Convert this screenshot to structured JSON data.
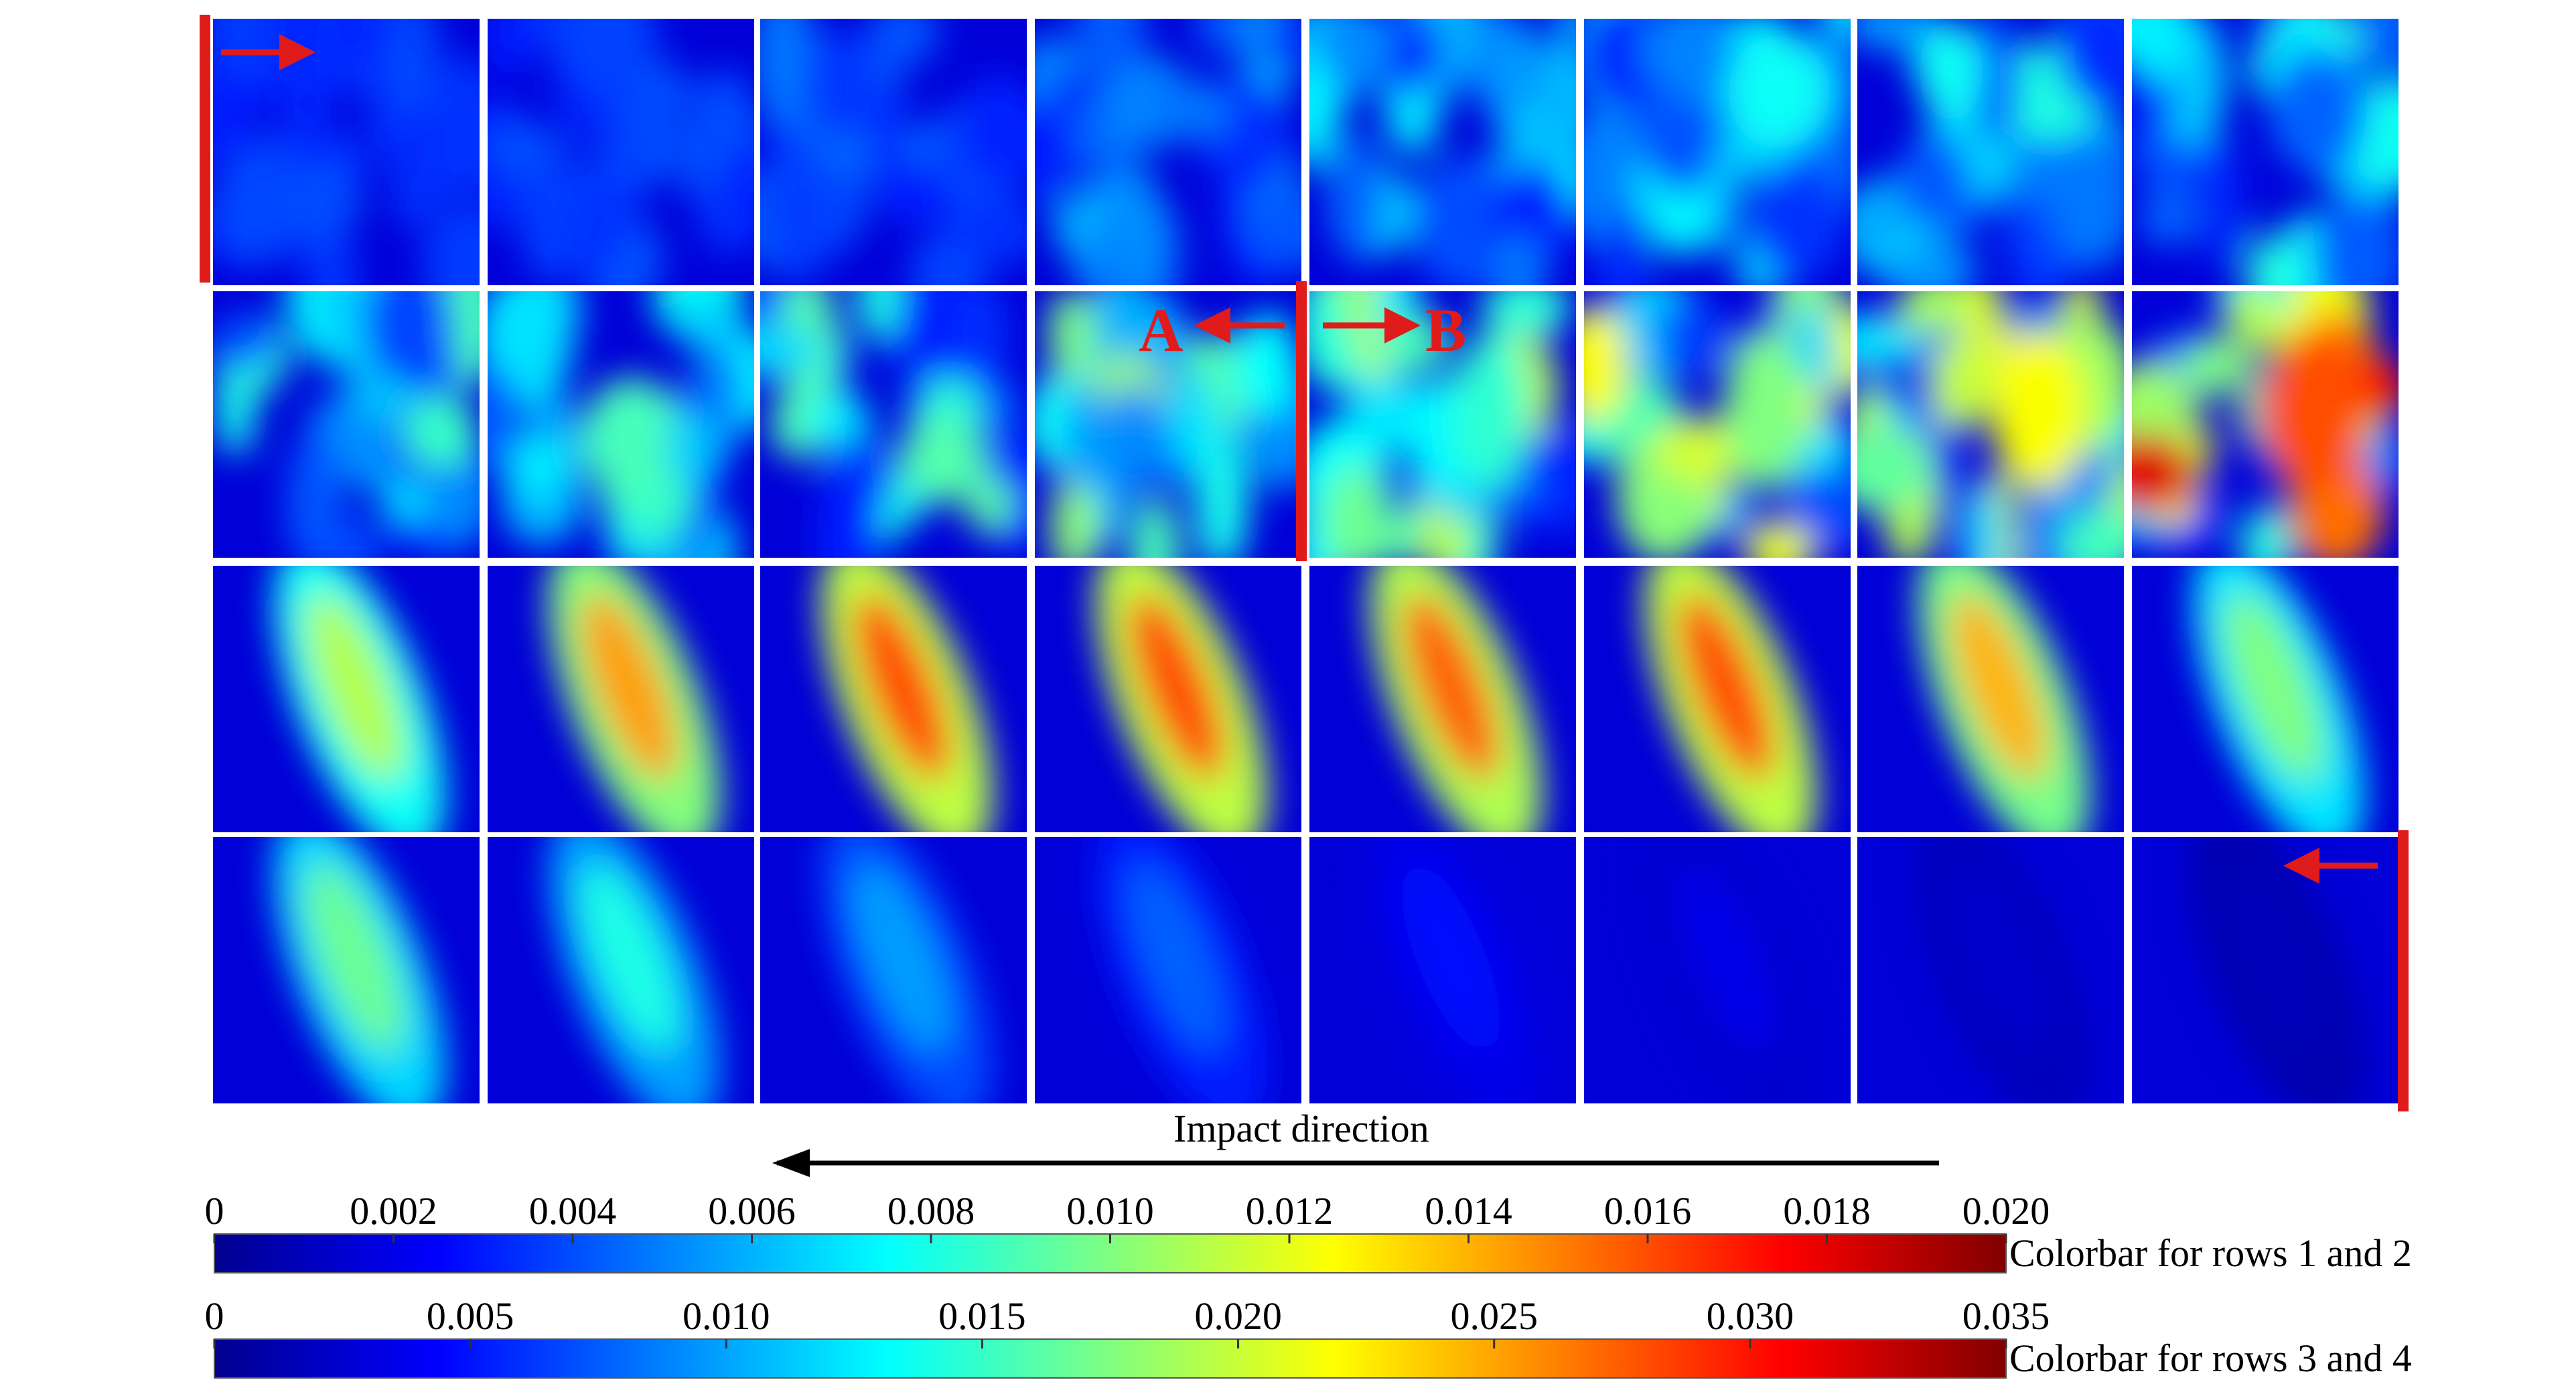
{
  "chart_data": {
    "type": "heatmap",
    "grid": {
      "rows": 4,
      "cols": 8
    },
    "annotations": {
      "point_a": "A",
      "point_b": "B"
    },
    "impact_direction_label": "Impact direction",
    "colorbars": [
      {
        "title": "Colorbar for rows 1 and 2",
        "range": [
          0,
          0.02
        ],
        "ticks": [
          "0",
          "0.002",
          "0.004",
          "0.006",
          "0.008",
          "0.010",
          "0.012",
          "0.014",
          "0.016",
          "0.018",
          "0.020"
        ]
      },
      {
        "title": "Colorbar for rows 3 and 4",
        "range": [
          0,
          0.035
        ],
        "ticks": [
          "0",
          "0.005",
          "0.010",
          "0.015",
          "0.020",
          "0.025",
          "0.030",
          "0.035"
        ]
      }
    ],
    "colormap": "jet",
    "colors": {
      "marker_red": "#e01b1b",
      "jet_stops": [
        "#00008f",
        "#0000ff",
        "#0080ff",
        "#00ffff",
        "#80ff80",
        "#ffff00",
        "#ff8000",
        "#ff0000",
        "#800000"
      ]
    }
  }
}
